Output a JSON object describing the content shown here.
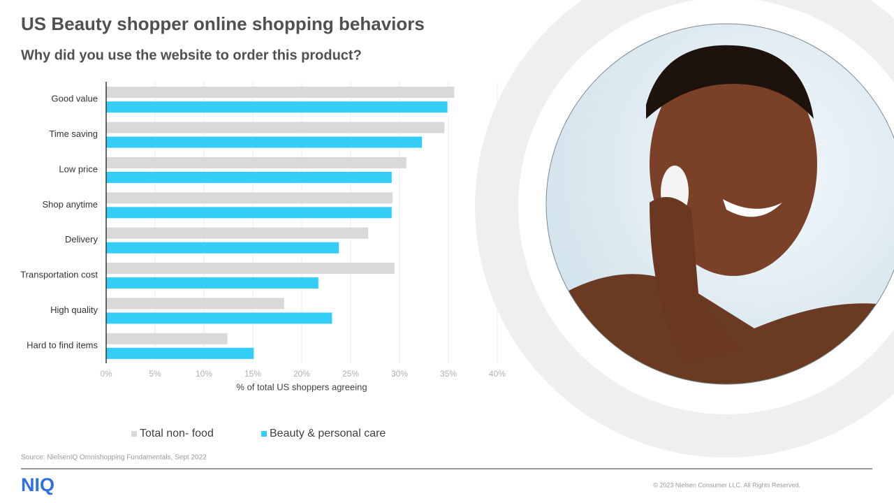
{
  "chart_data": {
    "type": "hbar",
    "title": "US Beauty shopper online shopping behaviors",
    "subtitle": "Why did you use the website to order this product?",
    "x_label": "% of total US shoppers agreeing",
    "categories": [
      "Good value",
      "Time saving",
      "Low price",
      "Shop anytime",
      "Delivery",
      "Transportation cost",
      "High quality",
      "Hard to find items"
    ],
    "series": [
      {
        "name": "Total non- food",
        "color": "#d9d9d9",
        "values": [
          35.6,
          34.6,
          30.7,
          29.3,
          26.8,
          29.5,
          18.2,
          12.4
        ]
      },
      {
        "name": "Beauty & personal care",
        "color": "#33cdf6",
        "values": [
          34.9,
          32.3,
          29.2,
          29.2,
          23.8,
          21.7,
          23.1,
          15.1
        ]
      }
    ],
    "xlim": [
      0,
      40
    ],
    "xticks": [
      {
        "value": 0,
        "label": "0%"
      },
      {
        "value": 5,
        "label": "5%"
      },
      {
        "value": 10,
        "label": "10%"
      },
      {
        "value": 15,
        "label": "15%"
      },
      {
        "value": 20,
        "label": "20%"
      },
      {
        "value": 25,
        "label": "25%"
      },
      {
        "value": 30,
        "label": "30%"
      },
      {
        "value": 35,
        "label": "35%"
      },
      {
        "value": 40,
        "label": "40%"
      }
    ],
    "grid": true,
    "legend": "bottom"
  },
  "footer": {
    "source": "Source: NielsenIQ Omnishopping Fundamentals, Sept 2022",
    "logo": "NIQ",
    "copyright": "© 2023 Nielsen Consumer LLC. All Rights Reserved."
  }
}
